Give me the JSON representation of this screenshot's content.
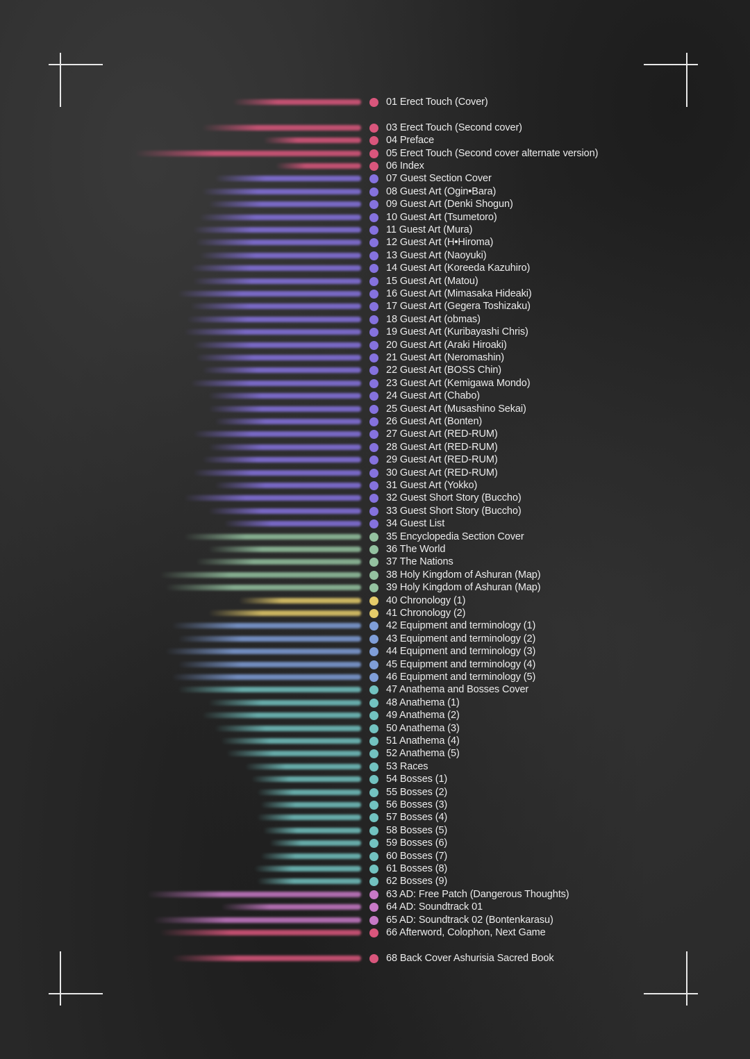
{
  "colors": {
    "cover": "#d9567c",
    "guest": "#8572de",
    "encyclopedia": "#94c2a0",
    "chronology": "#e6cc6a",
    "equipment": "#7f9ed8",
    "anathema": "#72c2c0",
    "ad": "#c779c6"
  },
  "entries": [
    {
      "label": "01 Erect Touch (Cover)",
      "group": "cover",
      "bar": 0.42
    },
    {
      "label": "03 Erect Touch (Second cover)",
      "group": "cover",
      "bar": 0.52
    },
    {
      "label": "04 Preface",
      "group": "cover",
      "bar": 0.32
    },
    {
      "label": "05 Erect Touch (Second cover alternate version)",
      "group": "cover",
      "bar": 0.74
    },
    {
      "label": "06 Index",
      "group": "cover",
      "bar": 0.28
    },
    {
      "label": "07 Guest Section Cover",
      "group": "guest",
      "bar": 0.48
    },
    {
      "label": "08 Guest Art (Ogin•Bara)",
      "group": "guest",
      "bar": 0.52
    },
    {
      "label": "09 Guest Art (Denki Shogun)",
      "group": "guest",
      "bar": 0.5
    },
    {
      "label": "10 Guest Art (Tsumetoro)",
      "group": "guest",
      "bar": 0.53
    },
    {
      "label": "11 Guest Art (Mura)",
      "group": "guest",
      "bar": 0.55
    },
    {
      "label": "12 Guest Art (H•Hiroma)",
      "group": "guest",
      "bar": 0.54
    },
    {
      "label": "13 Guest Art (Naoyuki)",
      "group": "guest",
      "bar": 0.53
    },
    {
      "label": "14 Guest Art (Koreeda Kazuhiro)",
      "group": "guest",
      "bar": 0.56
    },
    {
      "label": "15 Guest Art (Matou)",
      "group": "guest",
      "bar": 0.55
    },
    {
      "label": "16 Guest Art (Mimasaka Hideaki)",
      "group": "guest",
      "bar": 0.6
    },
    {
      "label": "17 Guest Art (Gegera Toshizaku)",
      "group": "guest",
      "bar": 0.56
    },
    {
      "label": "18 Guest Art (obmas)",
      "group": "guest",
      "bar": 0.57
    },
    {
      "label": "19 Guest Art (Kuribayashi Chris)",
      "group": "guest",
      "bar": 0.58
    },
    {
      "label": "20 Guest Art (Araki Hiroaki)",
      "group": "guest",
      "bar": 0.55
    },
    {
      "label": "21 Guest Art (Neromashin)",
      "group": "guest",
      "bar": 0.54
    },
    {
      "label": "22 Guest Art (BOSS Chin)",
      "group": "guest",
      "bar": 0.52
    },
    {
      "label": "23 Guest Art (Kemigawa Mondo)",
      "group": "guest",
      "bar": 0.56
    },
    {
      "label": "24 Guest Art (Chabo)",
      "group": "guest",
      "bar": 0.5
    },
    {
      "label": "25 Guest Art (Musashino Sekai)",
      "group": "guest",
      "bar": 0.5
    },
    {
      "label": "26 Guest Art (Bonten)",
      "group": "guest",
      "bar": 0.48
    },
    {
      "label": "27 Guest Art (RED-RUM)",
      "group": "guest",
      "bar": 0.55
    },
    {
      "label": "28 Guest Art (RED-RUM)",
      "group": "guest",
      "bar": 0.5
    },
    {
      "label": "29 Guest Art (RED-RUM)",
      "group": "guest",
      "bar": 0.52
    },
    {
      "label": "30 Guest Art (RED-RUM)",
      "group": "guest",
      "bar": 0.55
    },
    {
      "label": "31 Guest Art (Yokko)",
      "group": "guest",
      "bar": 0.48
    },
    {
      "label": "32 Guest Short Story (Buccho)",
      "group": "guest",
      "bar": 0.58
    },
    {
      "label": "33 Guest Short Story (Buccho)",
      "group": "guest",
      "bar": 0.5
    },
    {
      "label": "34 Guest List",
      "group": "guest",
      "bar": 0.45
    },
    {
      "label": "35 Encyclopedia Section Cover",
      "group": "encyclopedia",
      "bar": 0.58
    },
    {
      "label": "36 The World",
      "group": "encyclopedia",
      "bar": 0.5
    },
    {
      "label": "37 The Nations",
      "group": "encyclopedia",
      "bar": 0.54
    },
    {
      "label": "38 Holy Kingdom of Ashuran (Map)",
      "group": "encyclopedia",
      "bar": 0.66
    },
    {
      "label": "39 Holy Kingdom of Ashuran (Map)",
      "group": "encyclopedia",
      "bar": 0.64
    },
    {
      "label": "40 Chronology (1)",
      "group": "chronology",
      "bar": 0.4
    },
    {
      "label": "41 Chronology (2)",
      "group": "chronology",
      "bar": 0.5
    },
    {
      "label": "42 Equipment and terminology (1)",
      "group": "equipment",
      "bar": 0.62
    },
    {
      "label": "43 Equipment and terminology (2)",
      "group": "equipment",
      "bar": 0.6
    },
    {
      "label": "44 Equipment and terminology (3)",
      "group": "equipment",
      "bar": 0.64
    },
    {
      "label": "45 Equipment and terminology (4)",
      "group": "equipment",
      "bar": 0.6
    },
    {
      "label": "46 Equipment and terminology (5)",
      "group": "equipment",
      "bar": 0.62
    },
    {
      "label": "47 Anathema and Bosses Cover",
      "group": "anathema",
      "bar": 0.6
    },
    {
      "label": "48 Anathema (1)",
      "group": "anathema",
      "bar": 0.5
    },
    {
      "label": "49 Anathema (2)",
      "group": "anathema",
      "bar": 0.52
    },
    {
      "label": "50 Anathema (3)",
      "group": "anathema",
      "bar": 0.48
    },
    {
      "label": "51 Anathema (4)",
      "group": "anathema",
      "bar": 0.46
    },
    {
      "label": "52 Anathema (5)",
      "group": "anathema",
      "bar": 0.44
    },
    {
      "label": "53 Races",
      "group": "anathema",
      "bar": 0.38
    },
    {
      "label": "54 Bosses (1)",
      "group": "anathema",
      "bar": 0.36
    },
    {
      "label": "55 Bosses (2)",
      "group": "anathema",
      "bar": 0.34
    },
    {
      "label": "56 Bosses (3)",
      "group": "anathema",
      "bar": 0.33
    },
    {
      "label": "57 Bosses (4)",
      "group": "anathema",
      "bar": 0.34
    },
    {
      "label": "58 Bosses (5)",
      "group": "anathema",
      "bar": 0.32
    },
    {
      "label": "59 Bosses (6)",
      "group": "anathema",
      "bar": 0.3
    },
    {
      "label": "60 Bosses (7)",
      "group": "anathema",
      "bar": 0.33
    },
    {
      "label": "61 Bosses (8)",
      "group": "anathema",
      "bar": 0.35
    },
    {
      "label": "62 Bosses (9)",
      "group": "anathema",
      "bar": 0.34
    },
    {
      "label": "63 AD: Free Patch (Dangerous Thoughts)",
      "group": "ad",
      "bar": 0.7
    },
    {
      "label": "64 AD: Soundtrack 01",
      "group": "ad",
      "bar": 0.46
    },
    {
      "label": "65 AD: Soundtrack 02 (Bontenkarasu)",
      "group": "ad",
      "bar": 0.68
    },
    {
      "label": "66 Afterword, Colophon, Next Game",
      "group": "cover",
      "bar": 0.66
    },
    {
      "label": "68 Back Cover Ashurisia Sacred Book",
      "group": "cover",
      "bar": 0.62
    }
  ]
}
